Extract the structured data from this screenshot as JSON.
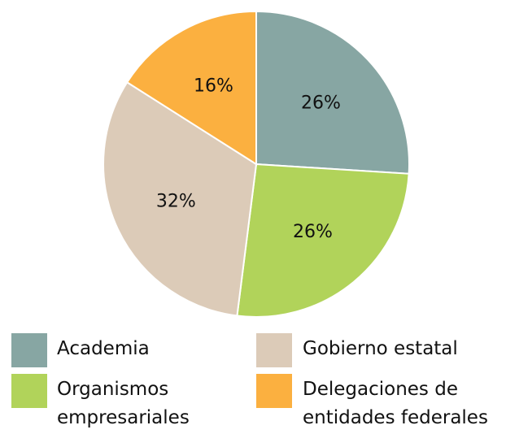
{
  "chart_data": {
    "type": "pie",
    "categories": [
      "Academia",
      "Organismos empresariales",
      "Gobierno estatal",
      "Delegaciones de entidades federales"
    ],
    "values": [
      26,
      26,
      32,
      16
    ],
    "value_labels": [
      "26%",
      "26%",
      "32%",
      "16%"
    ],
    "colors": [
      "#87a6a3",
      "#b1d35a",
      "#dccbb8",
      "#fbb040"
    ]
  }
}
